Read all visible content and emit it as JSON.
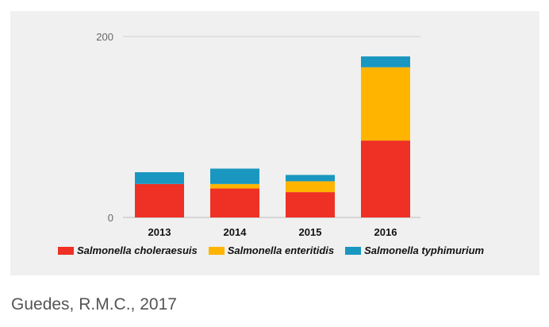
{
  "chart_data": {
    "type": "bar",
    "stacked": true,
    "categories": [
      "2013",
      "2014",
      "2015",
      "2016"
    ],
    "series": [
      {
        "name": "Salmonella choleraesuis",
        "color": "#ee3124",
        "values": [
          37,
          32,
          28,
          85
        ]
      },
      {
        "name": "Salmonella enteritidis",
        "color": "#ffb400",
        "values": [
          0,
          5,
          12,
          81
        ]
      },
      {
        "name": "Salmonella typhimurium",
        "color": "#1a97c0",
        "values": [
          13,
          17,
          7,
          12
        ]
      }
    ],
    "y_ticks": [
      "0",
      "200"
    ],
    "ylim": [
      0,
      200
    ],
    "grid": true,
    "legend": "bottom"
  },
  "caption": "Guedes, R.M.C., 2017"
}
